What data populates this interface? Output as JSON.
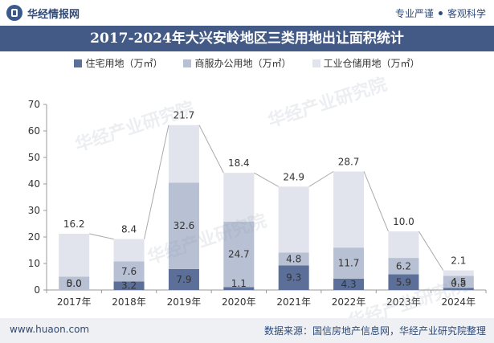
{
  "header": {
    "brand": "华经情报网",
    "tag_left": "专业严谨",
    "tag_right": "客观科学",
    "brand_icon": "logo-icon"
  },
  "footer": {
    "website": "www.huaon.com",
    "source": "数据来源：国信房地产信息网，华经产业研究院整理"
  },
  "watermark": "华经产业研究院",
  "chart_data": {
    "type": "bar",
    "stacked": true,
    "title": "2017-2024年大兴安岭地区三类用地出让面积统计",
    "categories": [
      "2017年",
      "2018年",
      "2019年",
      "2020年",
      "2021年",
      "2022年",
      "2023年",
      "2024年"
    ],
    "series": [
      {
        "name": "住宅用地（万㎡）",
        "color": "#5b6f99",
        "values": [
          0.0,
          3.2,
          7.9,
          1.1,
          9.3,
          4.3,
          5.9,
          0.8
        ]
      },
      {
        "name": "商服办公用地（万㎡）",
        "color": "#b8c0d3",
        "values": [
          5.0,
          7.6,
          32.6,
          24.7,
          4.8,
          11.7,
          6.2,
          4.5
        ]
      },
      {
        "name": "工业仓储用地（万㎡）",
        "color": "#e1e4ec",
        "values": [
          16.2,
          8.4,
          21.7,
          18.4,
          24.9,
          28.7,
          10.0,
          2.1
        ]
      }
    ],
    "yticks": [
      0,
      10,
      20,
      30,
      40,
      50,
      60,
      70
    ],
    "ylim": [
      0,
      70
    ],
    "xlabel": "",
    "ylabel": "",
    "grid": false,
    "legend": "top-center"
  }
}
